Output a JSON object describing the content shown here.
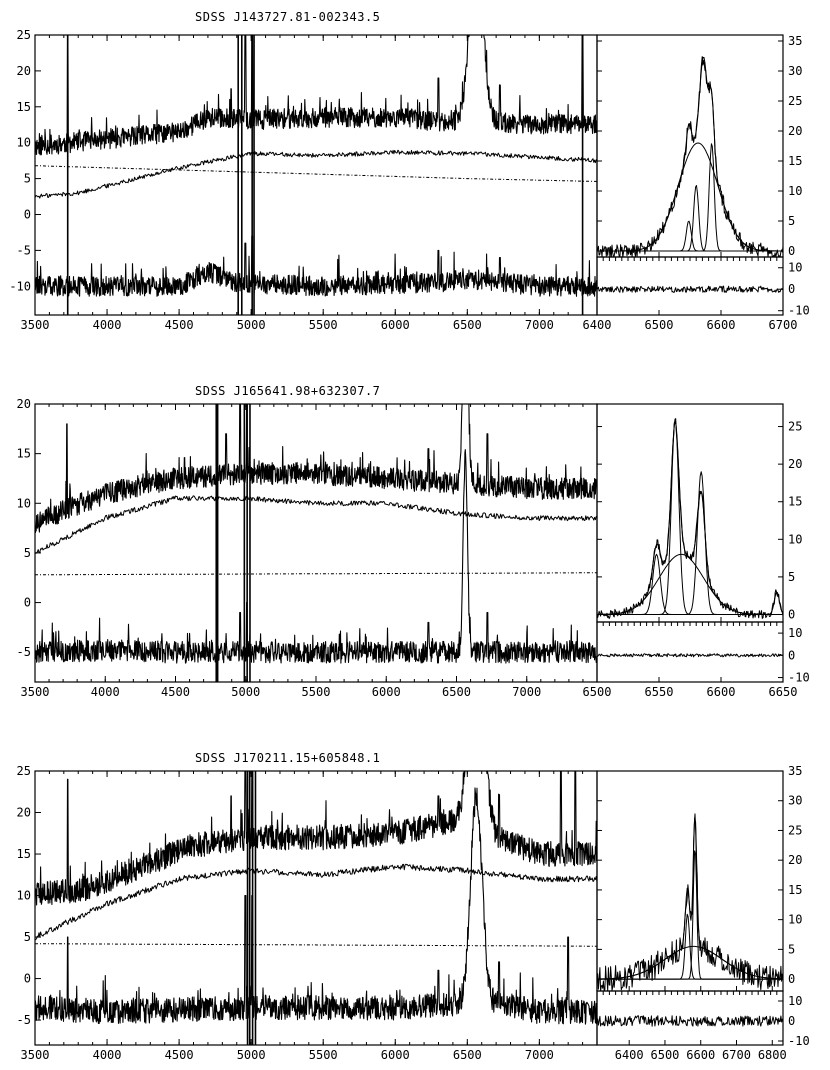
{
  "chart_data": [
    {
      "type": "line",
      "title": "SDSS J143727.81-002343.5",
      "main": {
        "xlim": [
          3500,
          7400
        ],
        "ylim": [
          -14,
          25
        ],
        "xticks": [
          3500,
          4000,
          4500,
          5000,
          5500,
          6000,
          6500,
          7000
        ],
        "xtick_labels": [
          "3500",
          "4000",
          "4500",
          "5000",
          "5500",
          "6000",
          "6500",
          "7000"
        ],
        "yticks": [
          -10,
          -5,
          0,
          5,
          10,
          15,
          20,
          25
        ],
        "series": [
          {
            "role": "observed",
            "base": [
              [
                3500,
                9.5
              ],
              [
                4000,
                10.5
              ],
              [
                4500,
                11.5
              ],
              [
                4700,
                13.5
              ],
              [
                5000,
                13.2
              ],
              [
                5500,
                13.5
              ],
              [
                6000,
                13.5
              ],
              [
                6300,
                13
              ],
              [
                6500,
                13
              ],
              [
                7000,
                12.5
              ],
              [
                7400,
                12.5
              ]
            ],
            "noise": 1.4,
            "spikes": [
              [
                3727,
                25
              ],
              [
                4861,
                17.5
              ],
              [
                4959,
                25
              ],
              [
                5007,
                25
              ],
              [
                6300,
                19
              ],
              [
                6725,
                18
              ],
              [
                7300,
                25
              ]
            ],
            "peak": [
              6563,
              25,
              45
            ]
          },
          {
            "role": "stellar",
            "base": [
              [
                3500,
                2.5
              ],
              [
                3800,
                3
              ],
              [
                4000,
                4
              ],
              [
                4500,
                6.5
              ],
              [
                5000,
                8.5
              ],
              [
                5500,
                8.2
              ],
              [
                6000,
                8.7
              ],
              [
                6500,
                8.5
              ],
              [
                7000,
                8
              ],
              [
                7400,
                7.5
              ]
            ],
            "noise": 0.3,
            "spikes": []
          },
          {
            "role": "power-law",
            "base": [
              [
                3500,
                6.8
              ],
              [
                4500,
                6.2
              ],
              [
                5500,
                5.6
              ],
              [
                6500,
                5
              ],
              [
                7400,
                4.6
              ]
            ],
            "noise": 0,
            "dotted": true,
            "spikes": []
          },
          {
            "role": "residual",
            "base": [
              [
                3500,
                -10
              ],
              [
                4500,
                -10
              ],
              [
                4700,
                -8
              ],
              [
                4900,
                -9.5
              ],
              [
                5500,
                -10
              ],
              [
                6300,
                -9.5
              ],
              [
                6500,
                -9
              ],
              [
                7000,
                -10
              ],
              [
                7400,
                -10
              ]
            ],
            "noise": 1.4,
            "spikes": [
              [
                4959,
                -4
              ],
              [
                5007,
                -3
              ],
              [
                6300,
                -5
              ],
              [
                6725,
                -6
              ]
            ],
            "peak": [
              6563,
              0,
              40
            ]
          }
        ],
        "vlines": [
          3727,
          4910,
          4935,
          5007,
          5020,
          7300
        ],
        "left_ticklabels": true,
        "right_ticklabels": false
      },
      "inset": {
        "xlim": [
          6400,
          6700
        ],
        "xticks": [
          6400,
          6500,
          6600,
          6700
        ],
        "xtick_labels": [
          "6400",
          "6500",
          "6600",
          "6700"
        ],
        "ylim": [
          -1,
          36
        ],
        "yticks": [
          0,
          5,
          10,
          15,
          20,
          25,
          30,
          35
        ],
        "residual_ylim": [
          -12,
          15
        ],
        "residual_yticks": [
          -10,
          0,
          10
        ],
        "components": [
          {
            "kind": "total",
            "center": 6563,
            "amp": 18,
            "sigma": 32,
            "narrow": [
              [
                6548,
                5,
                4
              ],
              [
                6572,
                15,
                6
              ],
              [
                6585,
                11,
                4
              ]
            ]
          },
          {
            "kind": "broad",
            "center": 6563,
            "amp": 18,
            "sigma": 32
          },
          {
            "kind": "narrow",
            "center": 6560,
            "amp": 11,
            "sigma": 4
          },
          {
            "kind": "narrow",
            "center": 6585,
            "amp": 18,
            "sigma": 4
          },
          {
            "kind": "narrow",
            "center": 6548,
            "amp": 5,
            "sigma": 4
          }
        ],
        "data_noise": 1.2
      }
    },
    {
      "type": "line",
      "title": "SDSS J165641.98+632307.7",
      "main": {
        "xlim": [
          3500,
          7500
        ],
        "ylim": [
          -8,
          20
        ],
        "xticks": [
          3500,
          4000,
          4500,
          5000,
          5500,
          6000,
          6500,
          7000
        ],
        "xtick_labels": [
          "3500",
          "4000",
          "4500",
          "5000",
          "5500",
          "6000",
          "6500",
          "7000"
        ],
        "yticks": [
          -5,
          0,
          5,
          10,
          15,
          20
        ],
        "series": [
          {
            "role": "observed",
            "base": [
              [
                3500,
                8
              ],
              [
                4000,
                11
              ],
              [
                4500,
                12.5
              ],
              [
                5000,
                13
              ],
              [
                5500,
                13
              ],
              [
                6000,
                12.5
              ],
              [
                6500,
                12
              ],
              [
                7000,
                11.5
              ],
              [
                7500,
                11.5
              ]
            ],
            "noise": 1.1,
            "spikes": [
              [
                3727,
                18
              ],
              [
                4861,
                17
              ],
              [
                4959,
                20
              ],
              [
                5007,
                20
              ],
              [
                6300,
                15.5
              ],
              [
                6720,
                17
              ],
              [
                6550,
                20
              ]
            ],
            "peak": [
              6563,
              20,
              18
            ]
          },
          {
            "role": "stellar",
            "base": [
              [
                3500,
                5
              ],
              [
                4000,
                8.5
              ],
              [
                4500,
                10.5
              ],
              [
                5000,
                10.5
              ],
              [
                5500,
                10
              ],
              [
                6000,
                10
              ],
              [
                6500,
                9
              ],
              [
                7000,
                8.5
              ],
              [
                7500,
                8.5
              ]
            ],
            "noise": 0.25,
            "spikes": []
          },
          {
            "role": "power-law",
            "base": [
              [
                3500,
                2.8
              ],
              [
                7500,
                3
              ]
            ],
            "noise": 0,
            "dotted": true,
            "spikes": []
          },
          {
            "role": "residual",
            "base": [
              [
                3500,
                -5
              ],
              [
                4000,
                -4.8
              ],
              [
                4500,
                -5
              ],
              [
                5500,
                -5
              ],
              [
                6500,
                -5
              ],
              [
                7500,
                -5
              ]
            ],
            "noise": 1.1,
            "spikes": [
              [
                4959,
                -1
              ],
              [
                5007,
                0
              ],
              [
                6300,
                -2
              ],
              [
                6720,
                -1
              ]
            ],
            "peak": [
              6563,
              20,
              15
            ]
          }
        ],
        "vlines": [
          4790,
          4800,
          4990,
          5010,
          5030
        ],
        "left_ticklabels": true,
        "right_ticklabels": false
      },
      "inset": {
        "xlim": [
          6500,
          6650
        ],
        "xticks": [
          6500,
          6550,
          6600,
          6650
        ],
        "xtick_labels": [
          "6500",
          "6550",
          "6600",
          "6650"
        ],
        "ylim": [
          -1,
          28
        ],
        "yticks": [
          0,
          5,
          10,
          15,
          20,
          25
        ],
        "residual_ylim": [
          -12,
          15
        ],
        "residual_yticks": [
          -10,
          0,
          10
        ],
        "components": [
          {
            "kind": "total",
            "center": 6568,
            "amp": 8,
            "sigma": 18,
            "narrow": [
              [
                6548,
                5,
                3
              ],
              [
                6563,
                18,
                3
              ],
              [
                6584,
                11,
                3
              ],
              [
                6645,
                3,
                2
              ]
            ]
          },
          {
            "kind": "broad",
            "center": 6568,
            "amp": 8,
            "sigma": 18
          },
          {
            "kind": "narrow",
            "center": 6548,
            "amp": 8,
            "sigma": 3
          },
          {
            "kind": "narrow",
            "center": 6563,
            "amp": 26,
            "sigma": 3
          },
          {
            "kind": "narrow",
            "center": 6584,
            "amp": 19,
            "sigma": 3
          }
        ],
        "data_noise": 0.6
      }
    },
    {
      "type": "line",
      "title": "SDSS J170211.15+605848.1",
      "main": {
        "xlim": [
          3500,
          7400
        ],
        "ylim": [
          -8,
          25
        ],
        "xticks": [
          3500,
          4000,
          4500,
          5000,
          5500,
          6000,
          6500,
          7000
        ],
        "xtick_labels": [
          "3500",
          "4000",
          "4500",
          "5000",
          "5500",
          "6000",
          "6500",
          "7000"
        ],
        "yticks": [
          -5,
          0,
          5,
          10,
          15,
          20,
          25
        ],
        "series": [
          {
            "role": "observed",
            "base": [
              [
                3500,
                10
              ],
              [
                3900,
                11
              ],
              [
                4300,
                14
              ],
              [
                4600,
                16
              ],
              [
                5000,
                17
              ],
              [
                5500,
                17
              ],
              [
                6000,
                17.5
              ],
              [
                6400,
                19
              ],
              [
                6700,
                17
              ],
              [
                7000,
                15
              ],
              [
                7400,
                15
              ]
            ],
            "noise": 1.5,
            "spikes": [
              [
                3727,
                24
              ],
              [
                4861,
                22
              ],
              [
                4959,
                25
              ],
              [
                5007,
                25
              ],
              [
                6300,
                22
              ],
              [
                6720,
                22
              ],
              [
                7150,
                25
              ],
              [
                7250,
                25
              ]
            ],
            "peak": [
              6563,
              25,
              50
            ]
          },
          {
            "role": "stellar",
            "base": [
              [
                3500,
                5
              ],
              [
                4000,
                9
              ],
              [
                4500,
                12
              ],
              [
                5000,
                13
              ],
              [
                5500,
                12.5
              ],
              [
                6000,
                13.5
              ],
              [
                6500,
                13
              ],
              [
                7000,
                12
              ],
              [
                7400,
                12
              ]
            ],
            "noise": 0.35,
            "spikes": []
          },
          {
            "role": "power-law",
            "base": [
              [
                3500,
                4.2
              ],
              [
                7400,
                3.9
              ]
            ],
            "noise": 0,
            "dotted": true,
            "spikes": []
          },
          {
            "role": "residual",
            "base": [
              [
                3500,
                -3.5
              ],
              [
                4000,
                -4
              ],
              [
                5000,
                -3.5
              ],
              [
                5500,
                -3.5
              ],
              [
                6000,
                -3.5
              ],
              [
                6400,
                -3
              ],
              [
                6700,
                -3
              ],
              [
                7000,
                -4
              ],
              [
                7400,
                -4
              ]
            ],
            "noise": 1.5,
            "spikes": [
              [
                3727,
                5
              ],
              [
                4959,
                10
              ],
              [
                5007,
                10
              ],
              [
                6300,
                1
              ],
              [
                6720,
                2
              ],
              [
                7200,
                5
              ]
            ],
            "peak": [
              6563,
              25,
              40
            ]
          }
        ],
        "vlines": [
          4975,
          4990,
          5010,
          5030
        ],
        "left_ticklabels": true,
        "right_ticklabels": false
      },
      "inset": {
        "xlim": [
          6310,
          6830
        ],
        "xticks": [
          6400,
          6500,
          6600,
          6700,
          6800
        ],
        "xtick_labels": [
          "6400",
          "6500",
          "6600",
          "6700",
          "6800"
        ],
        "ylim": [
          -2,
          35
        ],
        "yticks": [
          0,
          5,
          10,
          15,
          20,
          25,
          30,
          35
        ],
        "residual_ylim": [
          -12,
          15
        ],
        "residual_yticks": [
          -10,
          0,
          10
        ],
        "components": [
          {
            "kind": "total",
            "center": 6580,
            "amp": 5.5,
            "sigma": 80,
            "narrow": [
              [
                6563,
                10,
                6
              ],
              [
                6584,
                22,
                5
              ]
            ]
          },
          {
            "kind": "broad",
            "center": 6580,
            "amp": 5.5,
            "sigma": 80
          },
          {
            "kind": "narrow",
            "center": 6563,
            "amp": 11,
            "sigma": 6
          },
          {
            "kind": "narrow",
            "center": 6584,
            "amp": 22,
            "sigma": 5
          }
        ],
        "data_noise": 2.2
      }
    }
  ]
}
